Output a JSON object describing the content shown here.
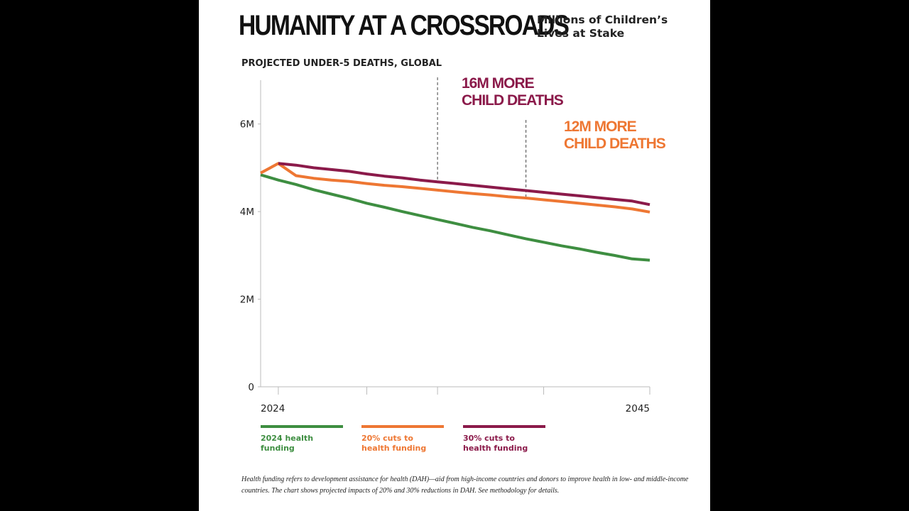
{
  "title": "HUMANITY AT A CROSSROADS",
  "subtitle": [
    "Millions of Children’s",
    "Lives at Stake"
  ],
  "chart_heading": "PROJECTED UNDER-5 DEATHS, GLOBAL",
  "callouts": [
    {
      "lines": [
        "16M MORE",
        "CHILD DEATHS"
      ],
      "x": 2033,
      "color": "#8B1A4A"
    },
    {
      "lines": [
        "12M MORE",
        "CHILD DEATHS"
      ],
      "x": 2038,
      "color": "#EE7733"
    }
  ],
  "legend": [
    {
      "lines": [
        "2024 health funding"
      ],
      "color": "#3E8E41"
    },
    {
      "lines": [
        "20% cuts to",
        "health funding"
      ],
      "color": "#EE7733"
    },
    {
      "lines": [
        "30% cuts to",
        "health funding"
      ],
      "color": "#8B1A4A"
    }
  ],
  "footnote": "Health funding refers to development assistance for health (DAH)—aid from high-income countries and donors to improve health in low- and middle-income countries. The chart shows projected impacts of 20% and 30% reductions in DAH. See methodology for details.",
  "chart_data": {
    "type": "line",
    "title": "PROJECTED UNDER-5 DEATHS, GLOBAL",
    "x": [
      2024,
      2025,
      2026,
      2027,
      2028,
      2029,
      2030,
      2031,
      2032,
      2033,
      2034,
      2035,
      2036,
      2037,
      2038,
      2039,
      2040,
      2041,
      2042,
      2043,
      2044,
      2045
    ],
    "xlim": [
      2023,
      2045
    ],
    "x_tick_labels": [
      {
        "x": 2024,
        "label": "2024"
      },
      {
        "x": 2045,
        "label": "2045"
      }
    ],
    "x_tick_marks": [
      2024,
      2029,
      2033,
      2039,
      2045
    ],
    "ylim": [
      0,
      7000000
    ],
    "y_ticks": [
      {
        "value": 0,
        "label": "0"
      },
      {
        "value": 2000000,
        "label": "2M"
      },
      {
        "value": 4000000,
        "label": "4M"
      },
      {
        "value": 6000000,
        "label": "6M"
      }
    ],
    "grid": false,
    "series": [
      {
        "name": "2024 health funding",
        "color": "#3E8E41",
        "x": [
          2023,
          2024,
          2025,
          2026,
          2027,
          2028,
          2029,
          2030,
          2031,
          2032,
          2033,
          2034,
          2035,
          2036,
          2037,
          2038,
          2039,
          2040,
          2041,
          2042,
          2043,
          2044,
          2045
        ],
        "values": [
          4840000,
          4720000,
          4620000,
          4500000,
          4400000,
          4300000,
          4190000,
          4100000,
          4000000,
          3910000,
          3820000,
          3730000,
          3640000,
          3560000,
          3470000,
          3380000,
          3300000,
          3220000,
          3150000,
          3070000,
          3000000,
          2920000,
          2890000
        ]
      },
      {
        "name": "20% cuts to health funding",
        "color": "#EE7733",
        "x": [
          2023,
          2024,
          2025,
          2026,
          2027,
          2028,
          2029,
          2030,
          2031,
          2032,
          2033,
          2034,
          2035,
          2036,
          2037,
          2038,
          2039,
          2040,
          2041,
          2042,
          2043,
          2044,
          2045
        ],
        "values": [
          4880000,
          5100000,
          4820000,
          4760000,
          4720000,
          4690000,
          4640000,
          4600000,
          4570000,
          4530000,
          4490000,
          4450000,
          4410000,
          4380000,
          4340000,
          4310000,
          4270000,
          4230000,
          4190000,
          4150000,
          4110000,
          4060000,
          3990000
        ]
      },
      {
        "name": "30% cuts to health funding",
        "color": "#8B1A4A",
        "x": [
          2024,
          2025,
          2026,
          2027,
          2028,
          2029,
          2030,
          2031,
          2032,
          2033,
          2034,
          2035,
          2036,
          2037,
          2038,
          2039,
          2040,
          2041,
          2042,
          2043,
          2044,
          2045
        ],
        "values": [
          5100000,
          5060000,
          5000000,
          4960000,
          4920000,
          4860000,
          4810000,
          4770000,
          4720000,
          4680000,
          4640000,
          4600000,
          4560000,
          4520000,
          4480000,
          4440000,
          4400000,
          4360000,
          4320000,
          4280000,
          4240000,
          4160000
        ]
      }
    ]
  }
}
